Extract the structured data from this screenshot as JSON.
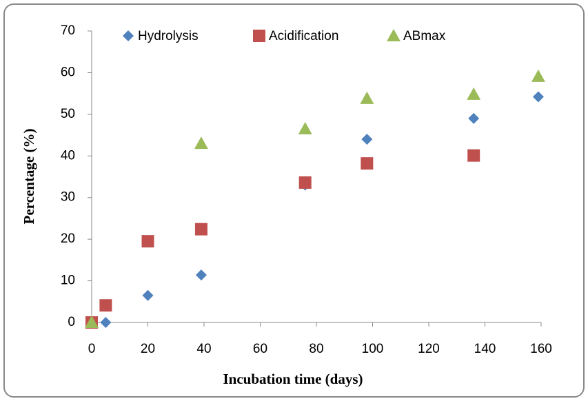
{
  "chart_data": {
    "type": "scatter",
    "x_label": "Incubation time (days)",
    "y_label": "Percentage (%)",
    "xlim": [
      0,
      160
    ],
    "xticks": [
      0,
      20,
      40,
      60,
      80,
      100,
      120,
      140,
      160
    ],
    "ylim": [
      0,
      70
    ],
    "yticks": [
      0,
      10,
      20,
      30,
      40,
      50,
      60,
      70
    ],
    "legend": "top",
    "series": [
      {
        "name": "Hydrolysis",
        "color": "#4f81bd",
        "marker": "diamond",
        "x": [
          0,
          5,
          20,
          39,
          76,
          98,
          136,
          159
        ],
        "values": [
          0,
          0,
          6.5,
          11.4,
          33,
          44,
          49,
          54.2
        ]
      },
      {
        "name": "Acidification",
        "color": "#c0504d",
        "marker": "square",
        "x": [
          0,
          5,
          20,
          39,
          76,
          98,
          136
        ],
        "values": [
          0,
          4.1,
          19.5,
          22.4,
          33.6,
          38.2,
          40.1
        ]
      },
      {
        "name": "ABmax",
        "color": "#9bbb59",
        "marker": "triangle",
        "x": [
          0,
          39,
          76,
          98,
          136,
          159
        ],
        "values": [
          0,
          43,
          46.5,
          53.8,
          54.8,
          59.1
        ]
      }
    ]
  }
}
